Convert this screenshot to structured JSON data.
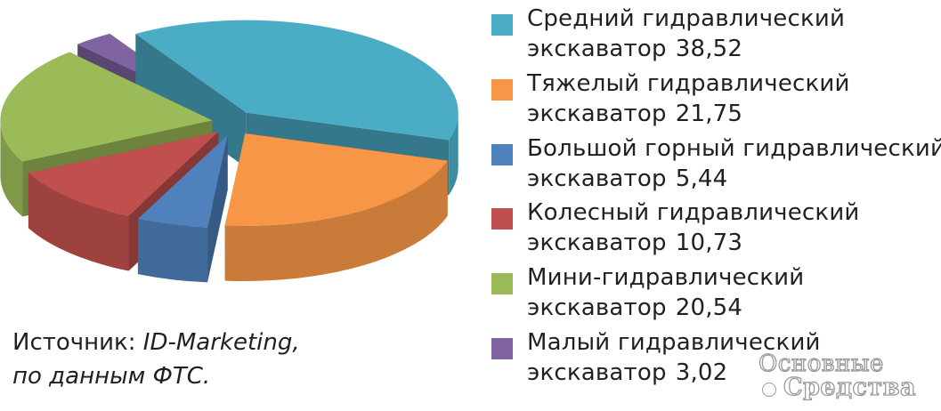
{
  "chart_data": {
    "type": "pie",
    "title": "",
    "slices": [
      {
        "line1": "Средний гидравлический",
        "line2": "экскаватор",
        "value_label": "38,52",
        "value": 38.52,
        "color": "#4bacc6"
      },
      {
        "line1": "Тяжелый гидравлический",
        "line2": "экскаватор",
        "value_label": "21,75",
        "value": 21.75,
        "color": "#f79646"
      },
      {
        "line1": "Большой горный гидравлический",
        "line2": "экскаватор",
        "value_label": "5,44",
        "value": 5.44,
        "color": "#4f81bd"
      },
      {
        "line1": "Колесный гидравлический",
        "line2": "экскаватор",
        "value_label": "10,73",
        "value": 10.73,
        "color": "#c0504d"
      },
      {
        "line1": "Мини-гидравлический",
        "line2": "экскаватор",
        "value_label": "20,54",
        "value": 20.54,
        "color": "#9bbb59"
      },
      {
        "line1": "Малый гидравлический",
        "line2": "экскаватор",
        "value_label": "3,02",
        "value": 3.02,
        "color": "#8064a2"
      }
    ],
    "exploded": true,
    "three_d": true,
    "legend_position": "right"
  },
  "source": {
    "prefix": "Источник:",
    "name": "ID-Marketing,",
    "line2": "по данным ФТС."
  },
  "watermark": {
    "line1": "Основные",
    "line2": "Средства"
  }
}
